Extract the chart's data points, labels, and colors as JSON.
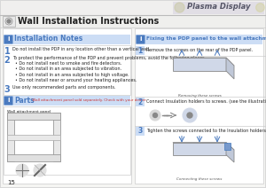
{
  "page_bg": "#d8d8d8",
  "content_bg": "#f5f5f3",
  "panel_bg": "#ffffff",
  "header_bg": "#ebebeb",
  "title": "Wall Installation Instructions",
  "brand": "Plasma Display",
  "left_section1_title": "Installation Notes",
  "left_section2_title": "Parts",
  "left_section2_subtitle": " Wall attachment panel sold separately. Check with your dealer.",
  "right_section_title": "Fixing the PDP panel to the wall attachment panel bracket",
  "step1_text": "Remove the screws on the rear of the PDP panel.",
  "step2_text": "Connect Insulation holders to screws. (see the illustration below)",
  "step3_text": "Tighten the screws connected to the Insulation holders on the rear of the PDP panel.",
  "note1": "Do not install the PDP in any location other than a vertical wall.",
  "note2": "To protect the performance of the PDP and prevent problems, avoid the following places.\n  • Do not install next to smoke and fire detectors.\n  • Do not install in an area subjected to vibration.\n  • Do not install in an area subjected to high voltage.\n  • Do not install near or around your heating appliances.",
  "note3": "Use only recommended parts and components.",
  "caption1": "Removing these screws",
  "caption3": "Connecting these screws",
  "accent_blue": "#4a7abf",
  "section_title_bg": "#ccddf5",
  "text_color": "#222222",
  "light_gray": "#cccccc",
  "mid_gray": "#888888",
  "red_text": "#cc3333",
  "brand_bg": "#d8d4e0",
  "brand_text": "#555566"
}
